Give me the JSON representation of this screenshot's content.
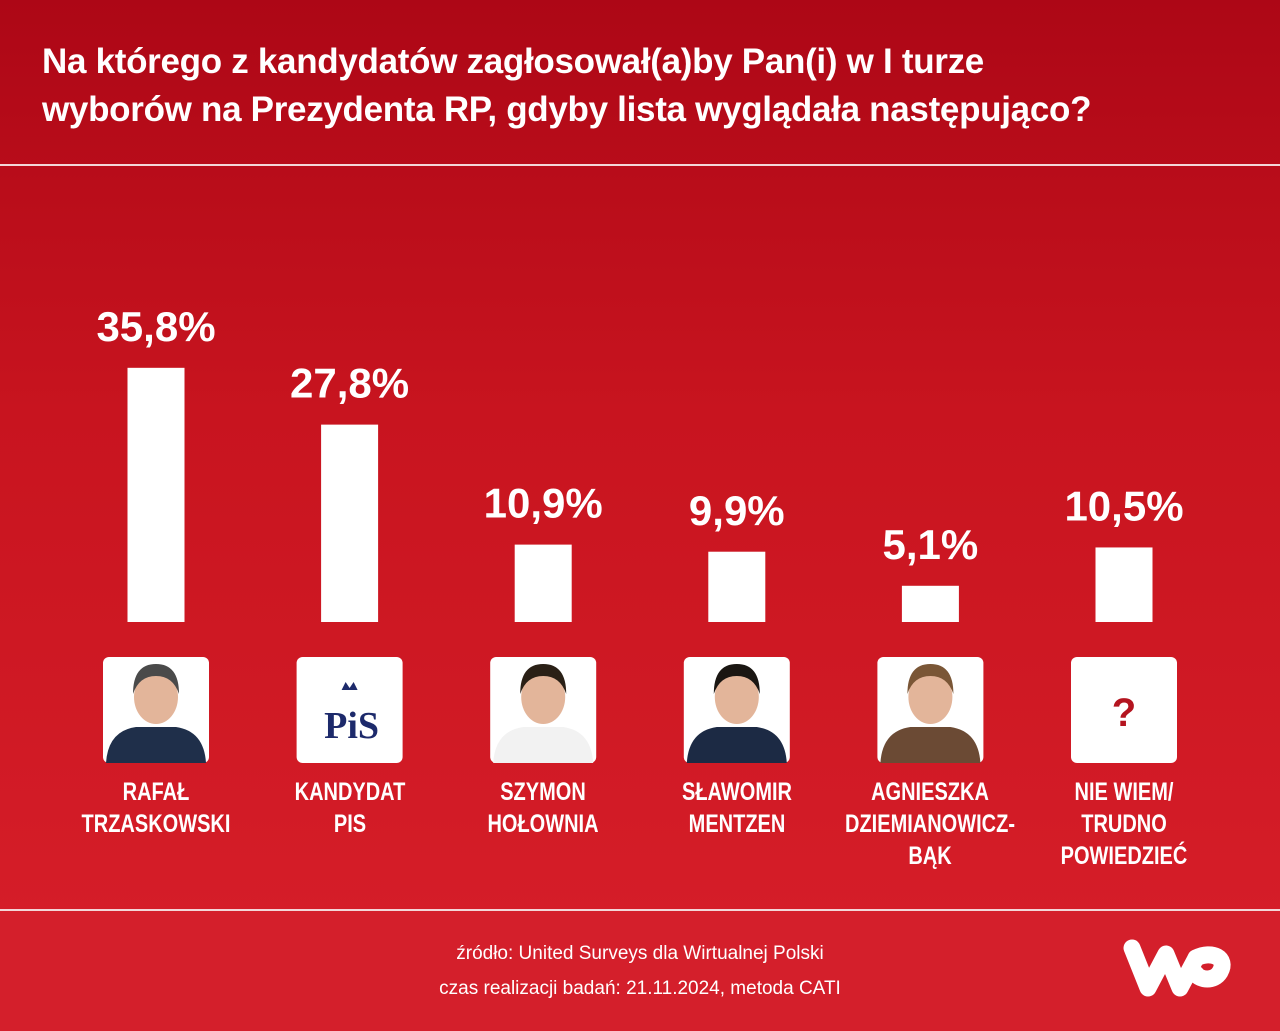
{
  "chart_data": {
    "type": "bar",
    "title": "Na którego z kandydatów zagłosował(a)by Pan(i) w I turze\nwyborów na Prezydenta RP, gdyby lista wyglądała następująco?",
    "categories": [
      "RAFAŁ\nTRZASKOWSKI",
      "KANDYDAT\nPIS",
      "SZYMON\nHOŁOWNIA",
      "SŁAWOMIR\nMENTZEN",
      "AGNIESZKA\nDZIEMIANOWICZ-BĄK",
      "NIE WIEM/\nTRUDNO\nPOWIEDZIEĆ"
    ],
    "values": [
      35.8,
      27.8,
      10.9,
      9.9,
      5.1,
      10.5
    ],
    "value_labels": [
      "35,8%",
      "27,8%",
      "10,9%",
      "9,9%",
      "5,1%",
      "10,5%"
    ],
    "color": "#ffffff",
    "pis_logo": "PiS",
    "unknown_icon": "?",
    "source": "źródło: United Surveys dla Wirtualnej Polski",
    "method": "czas realizacji badań: 21.11.2024, metoda CATI"
  }
}
